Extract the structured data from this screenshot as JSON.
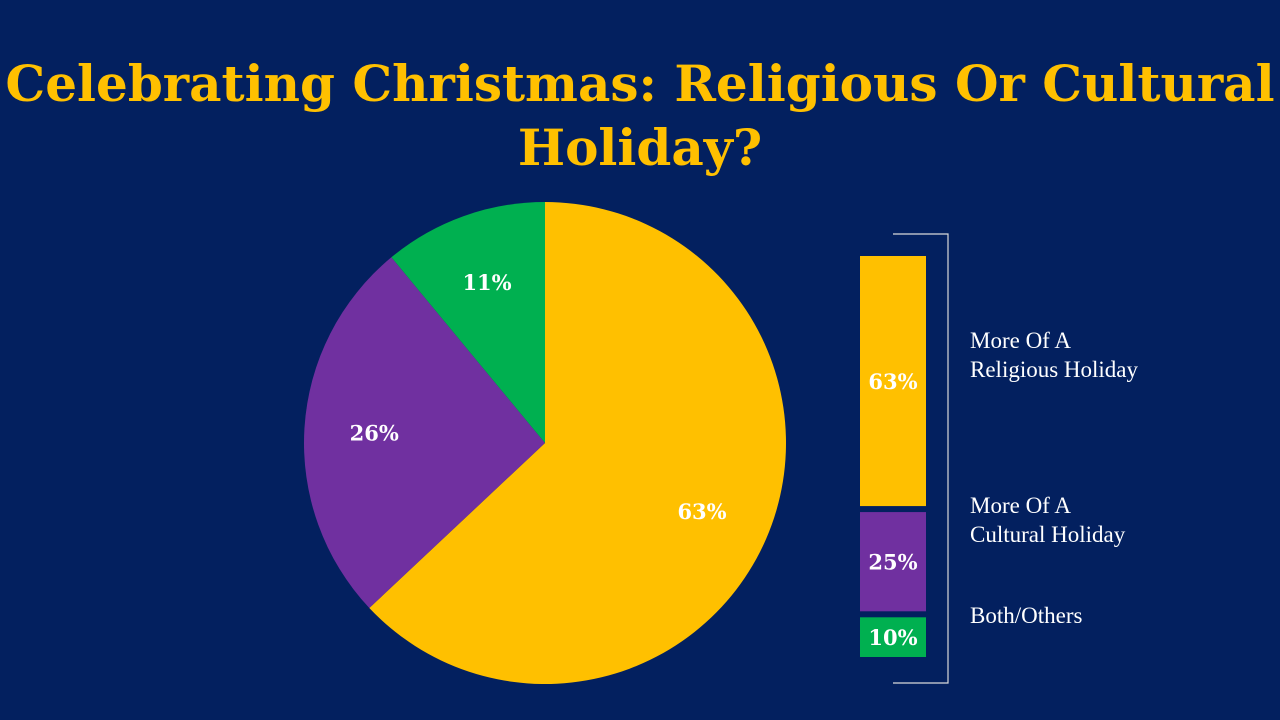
{
  "title": "Celebrating Christmas: Religious Or Cultural Holiday?",
  "chart_data": [
    {
      "type": "pie",
      "categories": [
        "More Of A Religious Holiday",
        "More Of A Cultural Holiday",
        "Both/Others"
      ],
      "values": [
        63,
        26,
        11
      ],
      "labels": [
        "63%",
        "26%",
        "11%"
      ],
      "colors": [
        "#ffc000",
        "#7030a0",
        "#00b050"
      ]
    },
    {
      "type": "bar",
      "orientation": "stacked-vertical",
      "categories": [
        "More Of A Religious Holiday",
        "More Of A Cultural Holiday",
        "Both/Others"
      ],
      "values": [
        63,
        25,
        10
      ],
      "labels": [
        "63%",
        "25%",
        "10%"
      ],
      "colors": [
        "#ffc000",
        "#7030a0",
        "#00b050"
      ]
    }
  ],
  "legend": {
    "items": [
      "More Of A\nReligious Holiday",
      "More Of A\nCultural Holiday",
      "Both/Others"
    ]
  }
}
